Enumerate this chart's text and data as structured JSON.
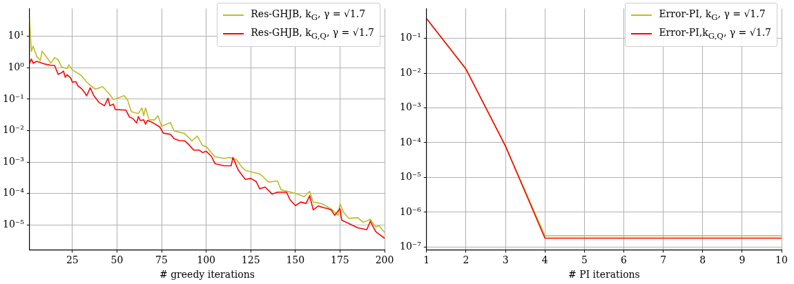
{
  "chart_data": [
    {
      "type": "line",
      "xlabel": "# greedy iterations",
      "xlim": [
        1,
        200
      ],
      "xticks": [
        25,
        50,
        75,
        100,
        125,
        150,
        175,
        200
      ],
      "ylim": [
        1.6e-06,
        77
      ],
      "yticks": [
        {
          "value": 1e-05,
          "label": "10⁻⁵"
        },
        {
          "value": 0.0001,
          "label": "10⁻⁴"
        },
        {
          "value": 0.001,
          "label": "10⁻³"
        },
        {
          "value": 0.01,
          "label": "10⁻²"
        },
        {
          "value": 0.1,
          "label": "10⁻¹"
        },
        {
          "value": 1,
          "label": "10⁰"
        },
        {
          "value": 10,
          "label": "10¹"
        }
      ],
      "log": "y",
      "grid": true,
      "legend": "top right",
      "marker": "none",
      "line_style": "solid",
      "series": [
        {
          "name": "Res-GHJB, k$_{G}$, γ = √1.7",
          "color": "#bcbd22",
          "x": [
            1,
            2,
            3,
            5,
            7,
            8,
            10,
            13,
            15,
            17,
            19,
            22,
            23,
            25,
            30,
            33,
            36,
            38,
            42,
            46,
            48,
            52,
            54,
            56,
            58,
            62,
            64,
            65,
            66,
            68,
            71,
            73,
            75,
            80,
            82,
            88,
            92,
            95,
            98,
            100,
            105,
            110,
            113,
            117,
            120,
            122,
            130,
            135,
            140,
            142,
            150,
            155,
            158,
            160,
            165,
            170,
            174,
            175,
            177,
            180,
            185,
            188,
            192,
            195,
            197,
            200
          ],
          "values": [
            39,
            3.3,
            4.9,
            2.3,
            1.7,
            3.4,
            2.4,
            1.4,
            2.1,
            1.8,
            1.05,
            0.94,
            1.24,
            0.86,
            0.57,
            0.35,
            0.25,
            0.21,
            0.25,
            0.14,
            0.097,
            0.118,
            0.13,
            0.092,
            0.04,
            0.035,
            0.053,
            0.03,
            0.053,
            0.022,
            0.022,
            0.03,
            0.0137,
            0.018,
            0.0098,
            0.008,
            0.0047,
            0.0067,
            0.0033,
            0.0031,
            0.00146,
            0.0013,
            0.0014,
            0.0012,
            0.00069,
            0.00054,
            0.00042,
            0.00023,
            0.00025,
            0.00013,
            0.0001,
            7.9e-05,
            0.000117,
            5.3e-05,
            4.7e-05,
            3.2e-05,
            2e-05,
            4.7e-05,
            2.5e-05,
            1.6e-05,
            1.7e-05,
            1.2e-05,
            1.5e-05,
            8.6e-06,
            9.3e-06,
            5.7e-06
          ]
        },
        {
          "name": "Res-GHJB, k$_{G,Q}$, γ = √1.7",
          "color": "#ff0000",
          "x": [
            1,
            2,
            3,
            5,
            10,
            13,
            15,
            17,
            19,
            20,
            21,
            22,
            24,
            25,
            27,
            28,
            30,
            32,
            33,
            35,
            37,
            40,
            43,
            45,
            46,
            48,
            49,
            55,
            57,
            59,
            61,
            62,
            63,
            65,
            66,
            67,
            70,
            74,
            76,
            80,
            82,
            85,
            88,
            90,
            93,
            96,
            98,
            100,
            103,
            105,
            110,
            114,
            115,
            118,
            120,
            122,
            125,
            128,
            130,
            133,
            137,
            140,
            145,
            147,
            150,
            153,
            156,
            158,
            160,
            163,
            165,
            168,
            170,
            172,
            175,
            176,
            180,
            185,
            190,
            192,
            195,
            200
          ],
          "values": [
            1.4,
            1.9,
            1.4,
            1.6,
            1.3,
            1.2,
            1.2,
            0.62,
            0.7,
            0.79,
            0.5,
            0.6,
            0.48,
            0.35,
            0.36,
            0.27,
            0.22,
            0.16,
            0.128,
            0.23,
            0.13,
            0.078,
            0.062,
            0.108,
            0.062,
            0.07,
            0.047,
            0.045,
            0.027,
            0.024,
            0.0175,
            0.028,
            0.021,
            0.022,
            0.016,
            0.021,
            0.018,
            0.013,
            0.0083,
            0.0076,
            0.0055,
            0.0048,
            0.0047,
            0.0037,
            0.0024,
            0.0024,
            0.002,
            0.0022,
            0.0015,
            0.00088,
            0.00076,
            0.00076,
            0.0014,
            0.00055,
            0.00039,
            0.00028,
            0.0003,
            0.00024,
            0.00014,
            0.00016,
            9.5e-05,
            0.00011,
            0.00011,
            6.3e-05,
            4.1e-05,
            5.3e-05,
            4.8e-05,
            8.5e-05,
            3e-05,
            4e-05,
            3.6e-05,
            3.3e-05,
            3e-05,
            2e-05,
            3.3e-05,
            1.4e-05,
            1.1e-05,
            8e-06,
            7e-06,
            1.3e-05,
            6.1e-06,
            3.7e-06
          ]
        }
      ]
    },
    {
      "type": "line",
      "xlabel": "# PI iterations",
      "xlim": [
        1,
        10
      ],
      "xticks": [
        1,
        2,
        3,
        4,
        5,
        6,
        7,
        8,
        9,
        10
      ],
      "ylim": [
        8.3e-08,
        0.72
      ],
      "yticks": [
        {
          "value": 1e-07,
          "label": "10⁻⁷"
        },
        {
          "value": 1e-06,
          "label": "10⁻⁶"
        },
        {
          "value": 1e-05,
          "label": "10⁻⁵"
        },
        {
          "value": 0.0001,
          "label": "10⁻⁴"
        },
        {
          "value": 0.001,
          "label": "10⁻³"
        },
        {
          "value": 0.01,
          "label": "10⁻²"
        },
        {
          "value": 0.1,
          "label": "10⁻¹"
        }
      ],
      "log": "y",
      "grid": true,
      "legend": "top right",
      "marker": "none",
      "line_style": "solid",
      "x": [
        1,
        2,
        3,
        4,
        5,
        6,
        7,
        8,
        9,
        10
      ],
      "series": [
        {
          "name": "Error-PI, k$_{G}$,  γ = √1.7",
          "color": "#bcbd22",
          "values": [
            0.37,
            0.013,
            8e-05,
            2.1e-07,
            2.1e-07,
            2.1e-07,
            2.1e-07,
            2.1e-07,
            2.1e-07,
            2.1e-07
          ]
        },
        {
          "name": "Error-PI,k$_{G,Q}$, γ = √1.7",
          "color": "#ff0000",
          "values": [
            0.37,
            0.013,
            8e-05,
            1.8e-07,
            1.8e-07,
            1.8e-07,
            1.8e-07,
            1.8e-07,
            1.8e-07,
            1.8e-07
          ]
        }
      ]
    }
  ]
}
